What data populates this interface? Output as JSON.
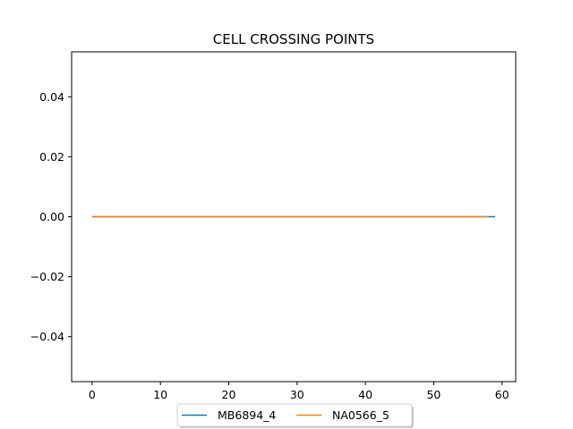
{
  "chart_data": {
    "type": "line",
    "title": "CELL CROSSING POINTS",
    "xlabel": "",
    "ylabel": "",
    "xlim": [
      -3,
      62
    ],
    "ylim": [
      -0.055,
      0.055
    ],
    "xticks": [
      0,
      10,
      20,
      30,
      40,
      50,
      60
    ],
    "xtick_labels": [
      "0",
      "10",
      "20",
      "30",
      "40",
      "50",
      "60"
    ],
    "yticks": [
      -0.04,
      -0.02,
      0.0,
      0.02,
      0.04
    ],
    "ytick_labels": [
      "−0.04",
      "−0.02",
      "0.00",
      "0.02",
      "0.04"
    ],
    "grid": false,
    "legend_position": "bottom-center",
    "series": [
      {
        "name": "MB6894_4",
        "color": "#1f77b4",
        "x": [
          0,
          59
        ],
        "values": [
          0,
          0
        ]
      },
      {
        "name": "NA0566_5",
        "color": "#ff7f0e",
        "x": [
          0,
          58
        ],
        "values": [
          0,
          0
        ]
      }
    ]
  }
}
